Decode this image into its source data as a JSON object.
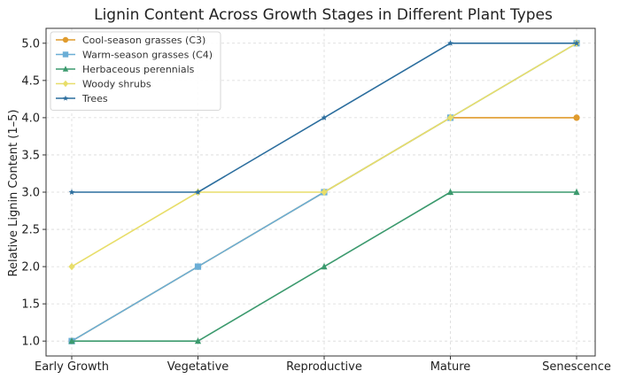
{
  "chart_data": {
    "type": "line",
    "title": "Lignin Content Across Growth Stages in Different Plant Types",
    "xlabel": "",
    "ylabel": "Relative Lignin Content (1–5)",
    "categories": [
      "Early Growth",
      "Vegetative",
      "Reproductive",
      "Mature",
      "Senescence"
    ],
    "ylim": [
      0.8,
      5.2
    ],
    "yticks": [
      "1.0",
      "1.5",
      "2.0",
      "2.5",
      "3.0",
      "3.5",
      "4.0",
      "4.5",
      "5.0"
    ],
    "grid": true,
    "legend_position": "top-left",
    "series": [
      {
        "name": "Cool-season grasses (C3)",
        "values": [
          1,
          2,
          3,
          4,
          4
        ],
        "color": "#E09B2D",
        "marker": "circle"
      },
      {
        "name": "Warm-season grasses (C4)",
        "values": [
          1,
          2,
          3,
          4,
          5
        ],
        "color": "#6BAED6",
        "marker": "square"
      },
      {
        "name": "Herbaceous perennials",
        "values": [
          1,
          1,
          2,
          3,
          3
        ],
        "color": "#3C9A6E",
        "marker": "triangle"
      },
      {
        "name": "Woody shrubs",
        "values": [
          2,
          3,
          3,
          4,
          5
        ],
        "color": "#E8DE6A",
        "marker": "diamond"
      },
      {
        "name": "Trees",
        "values": [
          3,
          3,
          4,
          5,
          5
        ],
        "color": "#2C6E9E",
        "marker": "star"
      }
    ]
  }
}
